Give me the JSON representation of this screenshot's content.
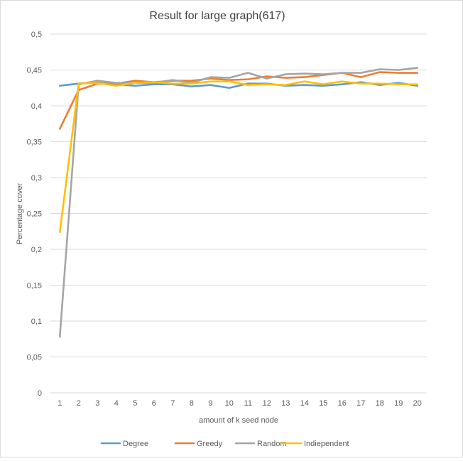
{
  "chart_data": {
    "type": "line",
    "title": "Result for large graph(617)",
    "xlabel": "amount of k seed node",
    "ylabel": "Percentage cover",
    "categories": [
      "1",
      "2",
      "3",
      "4",
      "5",
      "6",
      "7",
      "8",
      "9",
      "10",
      "11",
      "12",
      "13",
      "14",
      "15",
      "16",
      "17",
      "18",
      "19",
      "20"
    ],
    "ylim": [
      0,
      0.5
    ],
    "yticks": [
      "0",
      "0,05",
      "0,1",
      "0,15",
      "0,2",
      "0,25",
      "0,3",
      "0,35",
      "0,4",
      "0,45",
      "0,5"
    ],
    "grid": "horizontal",
    "legend_position": "bottom",
    "series": [
      {
        "name": "Degree",
        "color": "#5b9bd5",
        "values": [
          0.428,
          0.431,
          0.433,
          0.43,
          0.428,
          0.43,
          0.43,
          0.427,
          0.429,
          0.425,
          0.431,
          0.431,
          0.428,
          0.429,
          0.428,
          0.43,
          0.433,
          0.429,
          0.432,
          0.428
        ]
      },
      {
        "name": "Greedy",
        "color": "#ed7d31",
        "values": [
          0.368,
          0.422,
          0.431,
          0.431,
          0.435,
          0.433,
          0.435,
          0.435,
          0.438,
          0.436,
          0.437,
          0.441,
          0.439,
          0.44,
          0.443,
          0.446,
          0.44,
          0.447,
          0.446,
          0.446
        ]
      },
      {
        "name": "Random",
        "color": "#a5a5a5",
        "values": [
          0.078,
          0.43,
          0.435,
          0.432,
          0.432,
          0.432,
          0.436,
          0.432,
          0.44,
          0.439,
          0.446,
          0.438,
          0.444,
          0.445,
          0.444,
          0.446,
          0.446,
          0.451,
          0.45,
          0.453
        ]
      },
      {
        "name": "Indiependent",
        "color": "#ffc000",
        "values": [
          0.224,
          0.431,
          0.432,
          0.428,
          0.432,
          0.433,
          0.431,
          0.431,
          0.434,
          0.434,
          0.429,
          0.43,
          0.429,
          0.434,
          0.43,
          0.434,
          0.431,
          0.431,
          0.43,
          0.43
        ]
      }
    ]
  }
}
